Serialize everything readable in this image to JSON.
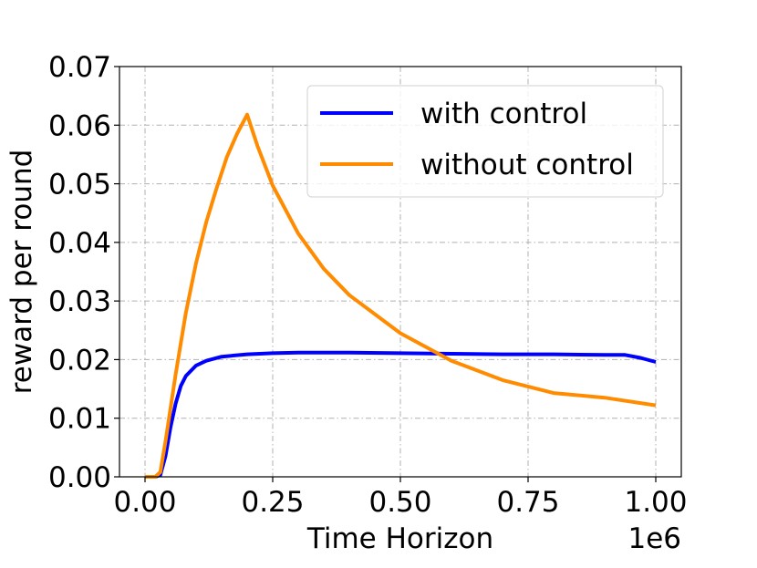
{
  "chart_data": {
    "type": "line",
    "xlabel": "Time Horizon",
    "ylabel": "reward per round",
    "x_offset_label": "1e6",
    "xlim": [
      -0.05,
      1.05
    ],
    "ylim": [
      0,
      0.07
    ],
    "x_ticks": [
      0,
      0.25,
      0.5,
      0.75,
      1.0
    ],
    "x_tick_labels": [
      "0.00",
      "0.25",
      "0.50",
      "0.75",
      "1.00"
    ],
    "y_ticks": [
      0,
      0.01,
      0.02,
      0.03,
      0.04,
      0.05,
      0.06,
      0.07
    ],
    "y_tick_labels": [
      "0.00",
      "0.01",
      "0.02",
      "0.03",
      "0.04",
      "0.05",
      "0.06",
      "0.07"
    ],
    "grid": true,
    "legend_position": "upper-right",
    "series": [
      {
        "name": "with control",
        "color": "#0000ff",
        "x": [
          0,
          0.02,
          0.03,
          0.04,
          0.05,
          0.06,
          0.07,
          0.08,
          0.1,
          0.12,
          0.15,
          0.2,
          0.25,
          0.3,
          0.4,
          0.5,
          0.6,
          0.7,
          0.8,
          0.9,
          0.94,
          0.97,
          1.0
        ],
        "y": [
          0,
          0,
          0.0003,
          0.0035,
          0.0085,
          0.0125,
          0.0155,
          0.0172,
          0.019,
          0.0198,
          0.0205,
          0.0209,
          0.0211,
          0.0212,
          0.0212,
          0.0211,
          0.021,
          0.0209,
          0.0209,
          0.0208,
          0.0208,
          0.0203,
          0.0196
        ]
      },
      {
        "name": "without control",
        "color": "#ff8c00",
        "x": [
          0,
          0.02,
          0.03,
          0.04,
          0.06,
          0.08,
          0.1,
          0.12,
          0.14,
          0.16,
          0.18,
          0.2,
          0.22,
          0.25,
          0.3,
          0.35,
          0.4,
          0.5,
          0.6,
          0.7,
          0.8,
          0.9,
          1.0
        ],
        "y": [
          0,
          0,
          0.0008,
          0.006,
          0.0175,
          0.028,
          0.0365,
          0.0435,
          0.0492,
          0.0545,
          0.0585,
          0.0618,
          0.0565,
          0.0497,
          0.0415,
          0.0355,
          0.031,
          0.0245,
          0.0198,
          0.0165,
          0.0143,
          0.0135,
          0.0122
        ]
      }
    ]
  }
}
